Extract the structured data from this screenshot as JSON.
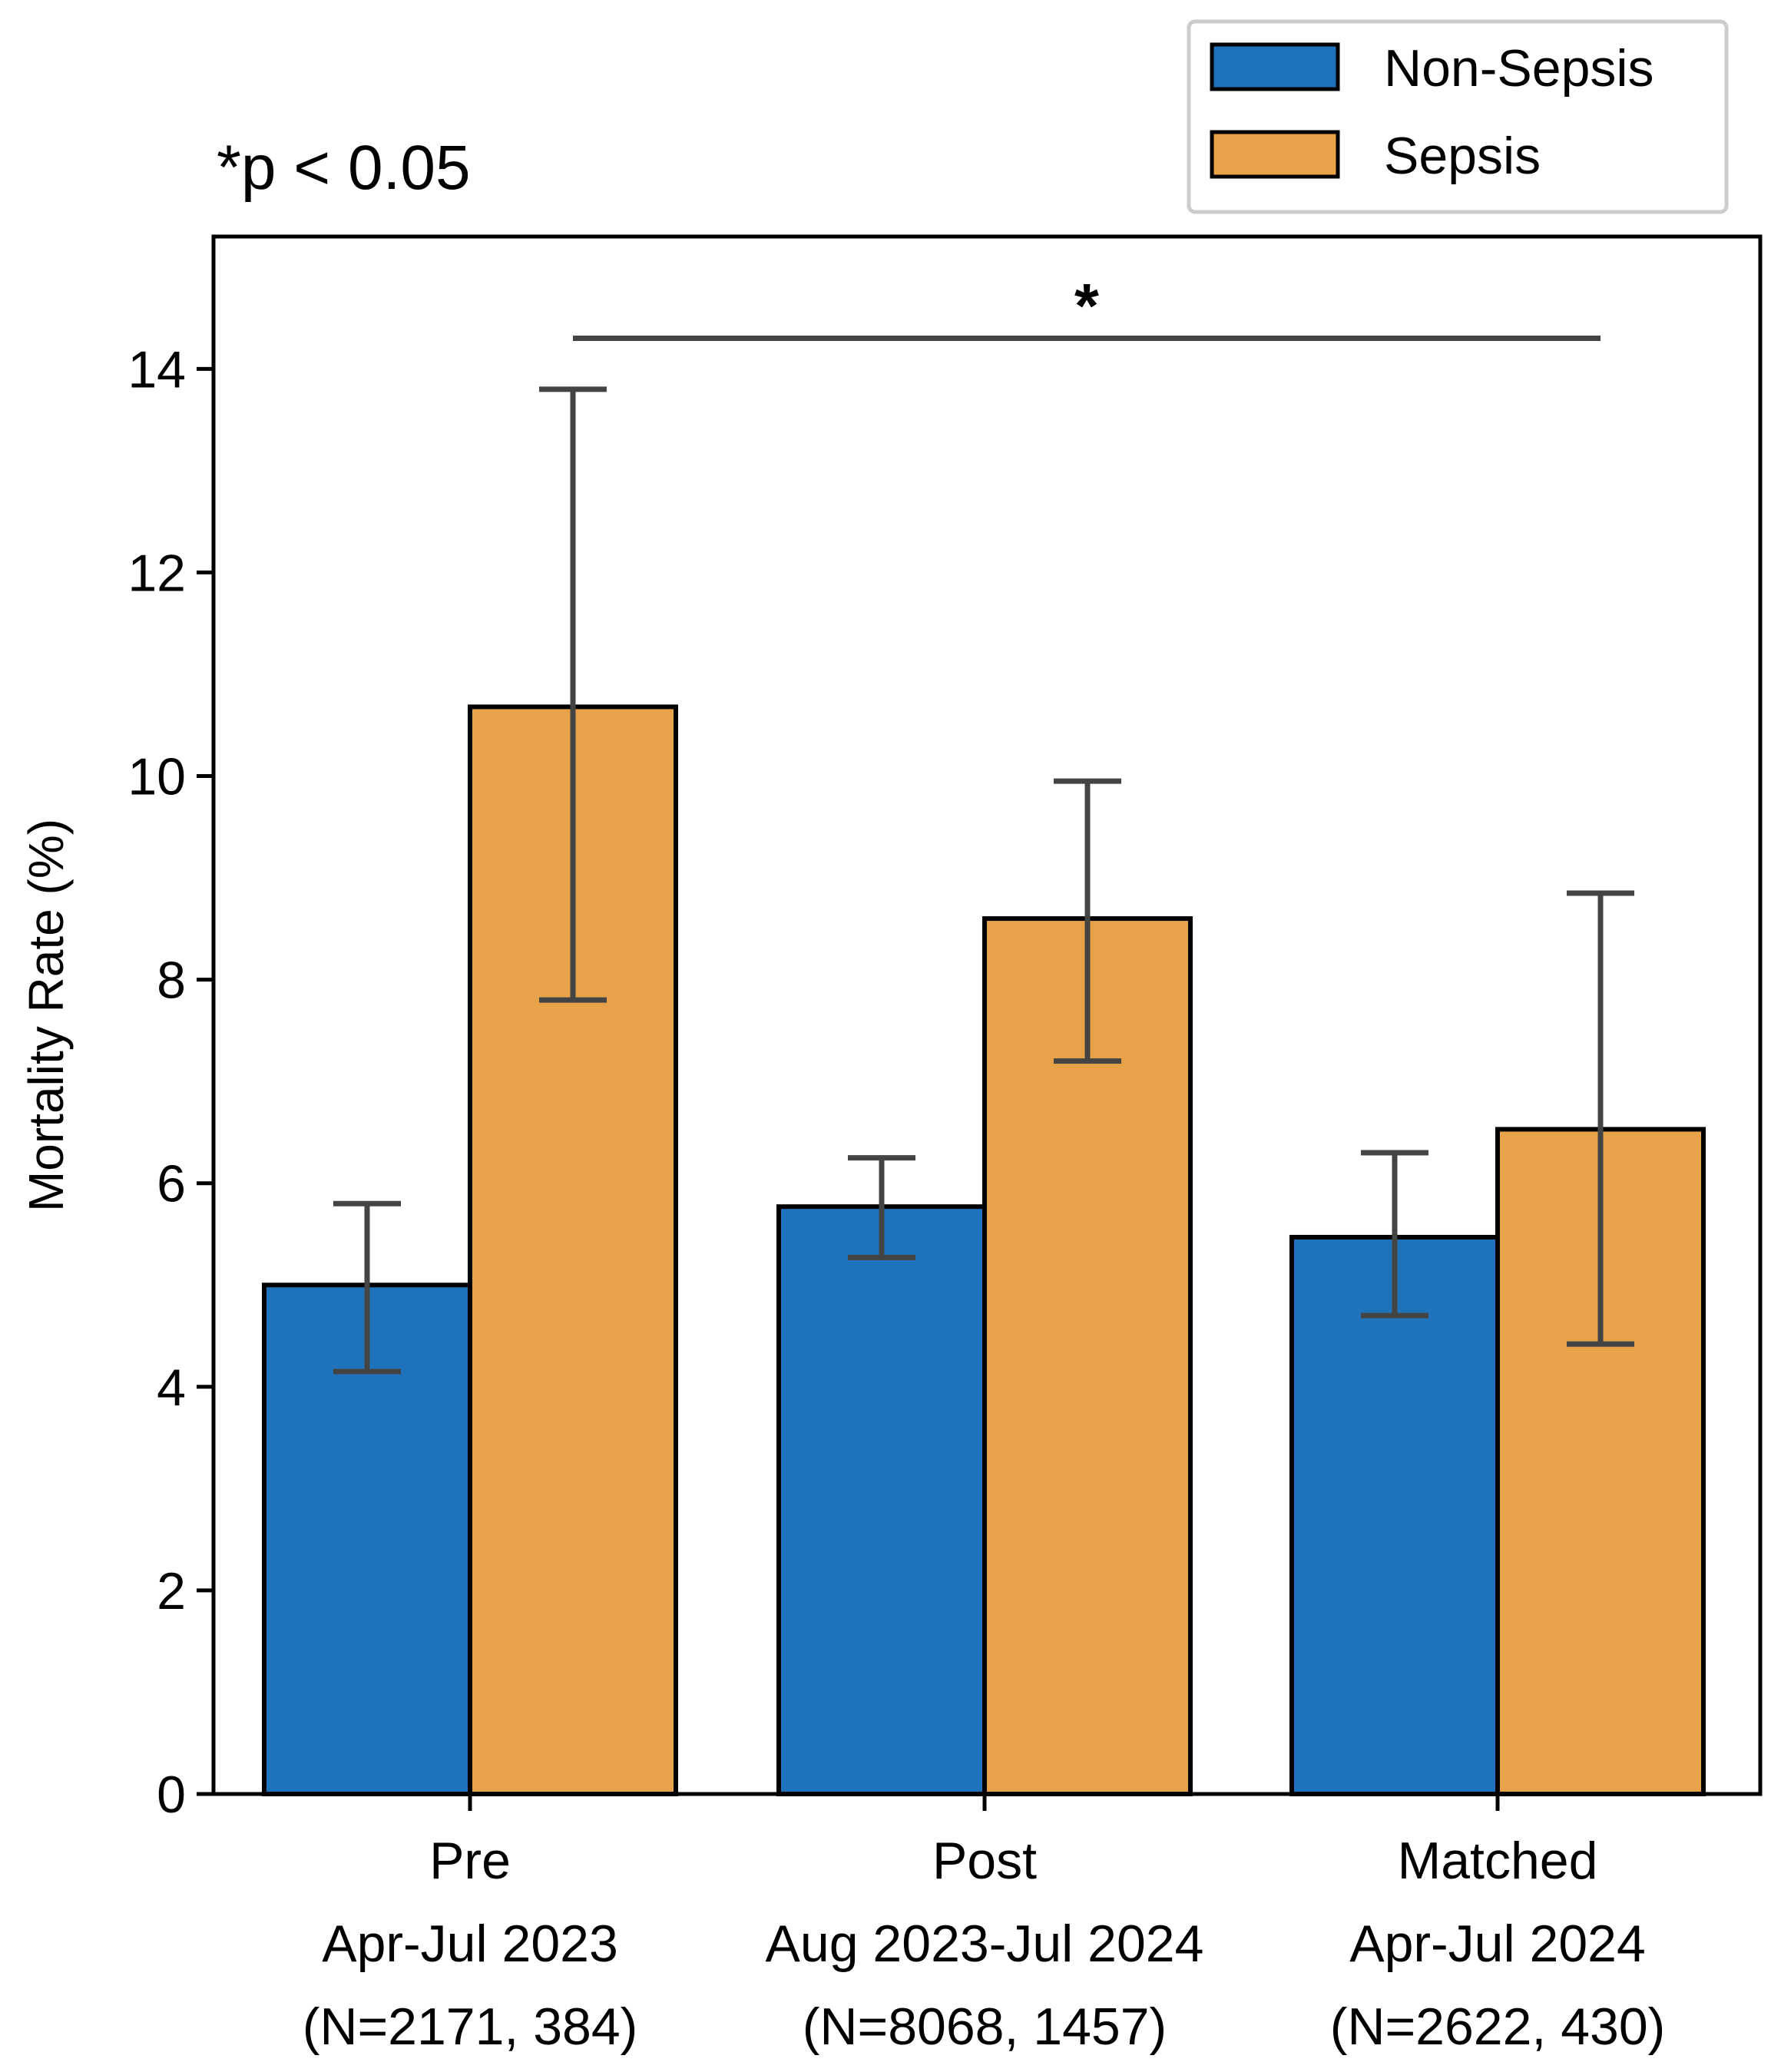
{
  "chart_data": {
    "type": "bar",
    "title": "",
    "xlabel": "",
    "ylabel": "Mortality Rate (%)",
    "ylim": [
      0,
      15.3
    ],
    "yticks": [
      0,
      2,
      4,
      6,
      8,
      10,
      12,
      14
    ],
    "categories": [
      [
        "Pre",
        "Apr-Jul 2023",
        "(N=2171, 384)"
      ],
      [
        "Post",
        "Aug 2023-Jul 2024",
        "(N=8068, 1457)"
      ],
      [
        "Matched",
        "Apr-Jul 2024",
        "(N=2622, 430)"
      ]
    ],
    "series": [
      {
        "name": "Non-Sepsis",
        "color": "#1f73bd",
        "values": [
          5.0,
          5.77,
          5.47
        ],
        "error_low": [
          4.15,
          5.27,
          4.7
        ],
        "error_high": [
          5.8,
          6.25,
          6.3
        ]
      },
      {
        "name": "Sepsis",
        "color": "#e8a24a",
        "values": [
          10.68,
          8.6,
          6.53
        ],
        "error_low": [
          7.8,
          7.2,
          4.42
        ],
        "error_high": [
          13.8,
          9.95,
          8.85
        ]
      }
    ],
    "legend_position": "top-right",
    "grid": false,
    "significance": {
      "label": "*",
      "from": "Pre Sepsis",
      "to": "Matched Sepsis",
      "y_value": 14.3
    },
    "annotation": "*p < 0.05"
  }
}
